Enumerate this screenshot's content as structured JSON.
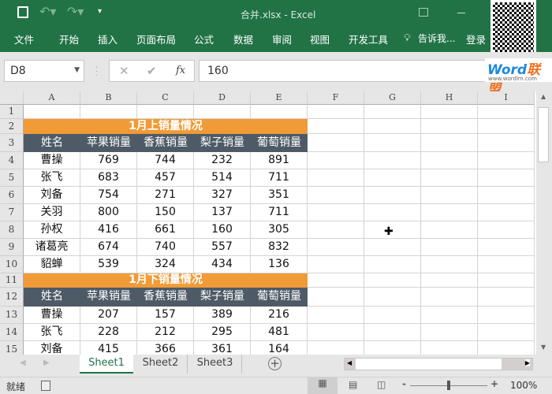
{
  "app": {
    "title": "合并.xlsx - Excel"
  },
  "ribbon": {
    "tabs": [
      "文件",
      "开始",
      "插入",
      "页面布局",
      "公式",
      "数据",
      "审阅",
      "视图",
      "开发工具"
    ],
    "tell_me": "告诉我...",
    "login": "登录"
  },
  "formula_bar": {
    "name_box": "D8",
    "value": "160",
    "fx": "fx"
  },
  "watermark": {
    "brand": "Word联盟",
    "url": "www.wordlm.com"
  },
  "columns": [
    "A",
    "B",
    "C",
    "D",
    "E",
    "F",
    "G",
    "H",
    "I"
  ],
  "rows": [
    "1",
    "2",
    "3",
    "4",
    "5",
    "6",
    "7",
    "8",
    "9",
    "10",
    "11",
    "12",
    "13",
    "14",
    "15"
  ],
  "table1": {
    "title": "1月上销量情况",
    "headers": [
      "姓名",
      "苹果销量",
      "香蕉销量",
      "梨子销量",
      "葡萄销量"
    ],
    "rows": [
      [
        "曹操",
        "769",
        "744",
        "232",
        "891"
      ],
      [
        "张飞",
        "683",
        "457",
        "514",
        "711"
      ],
      [
        "刘备",
        "754",
        "271",
        "327",
        "351"
      ],
      [
        "关羽",
        "800",
        "150",
        "137",
        "711"
      ],
      [
        "孙权",
        "416",
        "661",
        "160",
        "305"
      ],
      [
        "诸葛亮",
        "674",
        "740",
        "557",
        "832"
      ],
      [
        "貂蝉",
        "539",
        "324",
        "434",
        "136"
      ]
    ]
  },
  "table2": {
    "title": "1月下销量情况",
    "headers": [
      "姓名",
      "苹果销量",
      "香蕉销量",
      "梨子销量",
      "葡萄销量"
    ],
    "rows": [
      [
        "曹操",
        "207",
        "157",
        "389",
        "216"
      ],
      [
        "张飞",
        "228",
        "212",
        "295",
        "481"
      ],
      [
        "刘备",
        "415",
        "366",
        "361",
        "164"
      ]
    ]
  },
  "sheets": [
    "Sheet1",
    "Sheet2",
    "Sheet3"
  ],
  "active_sheet": "Sheet1",
  "status": {
    "ready": "就绪",
    "zoom": "100%"
  },
  "colors": {
    "excel_green": "#217346",
    "title_fill": "#f09b37",
    "header_fill": "#4e5b66"
  }
}
